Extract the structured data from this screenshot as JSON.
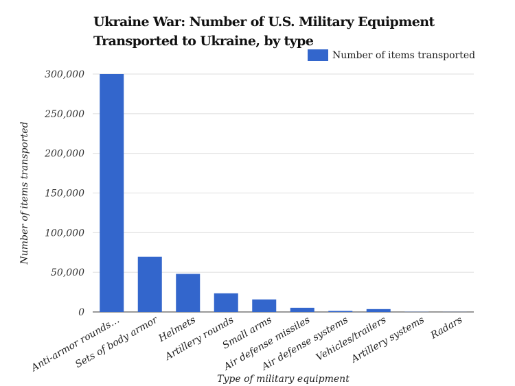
{
  "chart_data": {
    "type": "bar",
    "title": "Ukraine War: Number of U.S. Military Equipment Transported to Ukraine, by type",
    "title_lines": [
      "Ukraine War: Number of U.S. Military Equipment",
      "Transported to Ukraine, by type"
    ],
    "xlabel": "Type of military equipment",
    "ylabel": "Number of items transported",
    "categories": [
      "Anti-armor rounds…",
      "Sets of body armor",
      "Helmets",
      "Artillery rounds",
      "Small arms",
      "Air defense missiles",
      "Air defense systems",
      "Vehicles/trailers",
      "Artillery systems",
      "Radars"
    ],
    "series": [
      {
        "name": "Number of items transported",
        "values": [
          300000,
          69500,
          48000,
          23500,
          15800,
          5300,
          1300,
          3600,
          200,
          100
        ],
        "color": "#3366cc"
      }
    ],
    "ylim": [
      0,
      300000
    ],
    "yticks": [
      "0",
      "50,000",
      "100,000",
      "150,000",
      "200,000",
      "250,000",
      "300,000"
    ],
    "grid": true,
    "legend_position": "top-right"
  }
}
